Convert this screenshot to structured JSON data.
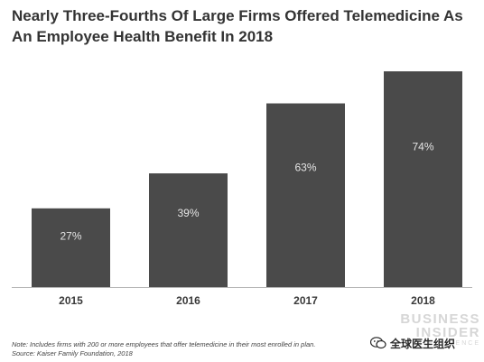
{
  "chart_data": {
    "type": "bar",
    "title": "Nearly Three-Fourths Of Large Firms Offered Telemedicine As An Employee Health Benefit In 2018",
    "categories": [
      "2015",
      "2016",
      "2017",
      "2018"
    ],
    "values": [
      27,
      39,
      63,
      74
    ],
    "data_labels": [
      "27%",
      "39%",
      "63%",
      "74%"
    ],
    "unit": "%",
    "xlabel": "",
    "ylabel": "",
    "grid": false,
    "legend": "none",
    "bar_color": "#4a4a4a",
    "label_color": "#e4e4e4"
  },
  "footnotes": {
    "note": "Note: Includes firms with 200 or more employees that offer telemedicine in their most enrolled in plan.",
    "source": "Source: Kaiser Family Foundation, 2018"
  },
  "brand": {
    "line1": "BUSINESS",
    "line2": "INSIDER",
    "sub": "INTELLIGENCE"
  },
  "watermark": {
    "icon": "wechat-icon",
    "text": "全球医生组织"
  },
  "colors": {
    "title": "#333333",
    "baseline": "#b5b5b5",
    "logo": "#d6d6d6"
  }
}
